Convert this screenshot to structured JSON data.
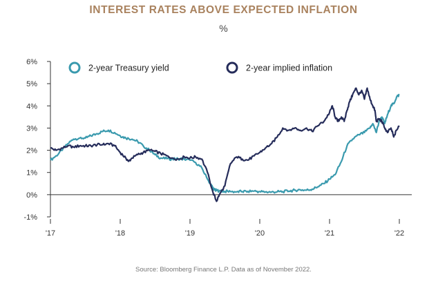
{
  "title": "INTEREST RATES ABOVE EXPECTED INFLATION",
  "unit_label": "%",
  "source": "Source: Bloomberg Finance L.P. Data as of November 2022.",
  "colors": {
    "title": "#a9825e",
    "treasury": "#3a9aae",
    "inflation": "#252c5a",
    "axis": "#333333"
  },
  "chart_data": {
    "type": "line",
    "title": "INTEREST RATES ABOVE EXPECTED INFLATION",
    "ylabel": "%",
    "xlabel": "",
    "ylim": [
      -1,
      6
    ],
    "xlim": [
      2017,
      2022
    ],
    "y_ticks": [
      -1,
      0,
      1,
      2,
      3,
      4,
      5,
      6
    ],
    "y_tick_labels": [
      "-1%",
      "0%",
      "1%",
      "2%",
      "3%",
      "4%",
      "5%",
      "6%"
    ],
    "x_ticks": [
      2017,
      2018,
      2019,
      2020,
      2021,
      2022
    ],
    "x_tick_labels": [
      "'17",
      "'18",
      "'19",
      "'20",
      "'21",
      "'22"
    ],
    "legend_position": "top",
    "grid": false,
    "series": [
      {
        "name": "2-year Treasury yield",
        "color": "#3a9aae",
        "x": [
          2017.0,
          2017.08,
          2017.17,
          2017.25,
          2017.33,
          2017.42,
          2017.5,
          2017.58,
          2017.67,
          2017.75,
          2017.83,
          2017.92,
          2018.0,
          2018.08,
          2018.17,
          2018.25,
          2018.33,
          2018.42,
          2018.5,
          2018.58,
          2018.67,
          2018.75,
          2018.83,
          2018.92,
          2019.0,
          2019.08,
          2019.17,
          2019.25,
          2019.33,
          2019.36,
          2019.38,
          2019.42,
          2019.5,
          2019.58,
          2019.67,
          2019.75,
          2019.83,
          2019.92,
          2020.0,
          2020.08,
          2020.17,
          2020.25,
          2020.33,
          2020.42,
          2020.5,
          2020.58,
          2020.67,
          2020.75,
          2020.83,
          2020.92,
          2021.0,
          2021.08,
          2021.17,
          2021.25,
          2021.33,
          2021.42,
          2021.5,
          2021.58,
          2021.62,
          2021.67,
          2021.71,
          2021.75,
          2021.79,
          2021.83,
          2021.88,
          2021.92,
          2021.96,
          2022.0
        ],
        "values": [
          1.55,
          1.75,
          2.0,
          2.3,
          2.5,
          2.55,
          2.55,
          2.65,
          2.75,
          2.85,
          2.9,
          2.8,
          2.65,
          2.55,
          2.5,
          2.4,
          2.2,
          2.0,
          1.8,
          1.65,
          1.62,
          1.6,
          1.62,
          1.6,
          1.55,
          1.45,
          1.2,
          0.7,
          0.3,
          0.2,
          0.2,
          0.17,
          0.15,
          0.14,
          0.13,
          0.14,
          0.15,
          0.16,
          0.14,
          0.12,
          0.12,
          0.13,
          0.14,
          0.16,
          0.2,
          0.22,
          0.2,
          0.25,
          0.35,
          0.5,
          0.7,
          0.9,
          1.5,
          2.2,
          2.5,
          2.7,
          2.8,
          3.0,
          3.2,
          2.8,
          3.3,
          3.5,
          3.2,
          3.6,
          4.0,
          4.1,
          4.4,
          4.5
        ]
      },
      {
        "name": "2-year implied inflation",
        "color": "#252c5a",
        "x": [
          2017.0,
          2017.08,
          2017.17,
          2017.25,
          2017.33,
          2017.42,
          2017.5,
          2017.58,
          2017.67,
          2017.75,
          2017.83,
          2017.92,
          2018.0,
          2018.08,
          2018.12,
          2018.17,
          2018.25,
          2018.33,
          2018.42,
          2018.5,
          2018.58,
          2018.67,
          2018.75,
          2018.83,
          2018.92,
          2019.0,
          2019.08,
          2019.17,
          2019.25,
          2019.33,
          2019.38,
          2019.42,
          2019.5,
          2019.58,
          2019.67,
          2019.75,
          2019.83,
          2019.92,
          2020.0,
          2020.08,
          2020.17,
          2020.25,
          2020.33,
          2020.42,
          2020.5,
          2020.58,
          2020.67,
          2020.75,
          2020.83,
          2020.92,
          2021.0,
          2021.04,
          2021.08,
          2021.12,
          2021.17,
          2021.21,
          2021.25,
          2021.29,
          2021.33,
          2021.38,
          2021.42,
          2021.46,
          2021.5,
          2021.54,
          2021.58,
          2021.62,
          2021.65,
          2021.67,
          2021.71,
          2021.75,
          2021.79,
          2021.83,
          2021.88,
          2021.92,
          2021.96,
          2022.0
        ],
        "values": [
          2.1,
          2.0,
          2.1,
          2.2,
          2.15,
          2.2,
          2.2,
          2.2,
          2.25,
          2.25,
          2.3,
          2.2,
          1.9,
          1.65,
          1.5,
          1.65,
          1.8,
          1.9,
          2.0,
          1.95,
          1.85,
          1.75,
          1.65,
          1.6,
          1.7,
          1.65,
          1.7,
          1.6,
          1.0,
          0.1,
          -0.3,
          0.0,
          0.4,
          1.4,
          1.7,
          1.6,
          1.55,
          1.75,
          1.9,
          2.1,
          2.3,
          2.6,
          3.0,
          2.9,
          3.0,
          2.9,
          3.0,
          2.85,
          3.1,
          3.3,
          3.7,
          4.0,
          3.5,
          3.3,
          3.5,
          3.3,
          3.8,
          4.2,
          4.5,
          4.8,
          4.5,
          4.7,
          4.3,
          4.8,
          4.3,
          4.0,
          3.8,
          3.3,
          3.4,
          3.3,
          3.0,
          2.8,
          3.0,
          2.6,
          2.9,
          3.1
        ]
      }
    ]
  }
}
